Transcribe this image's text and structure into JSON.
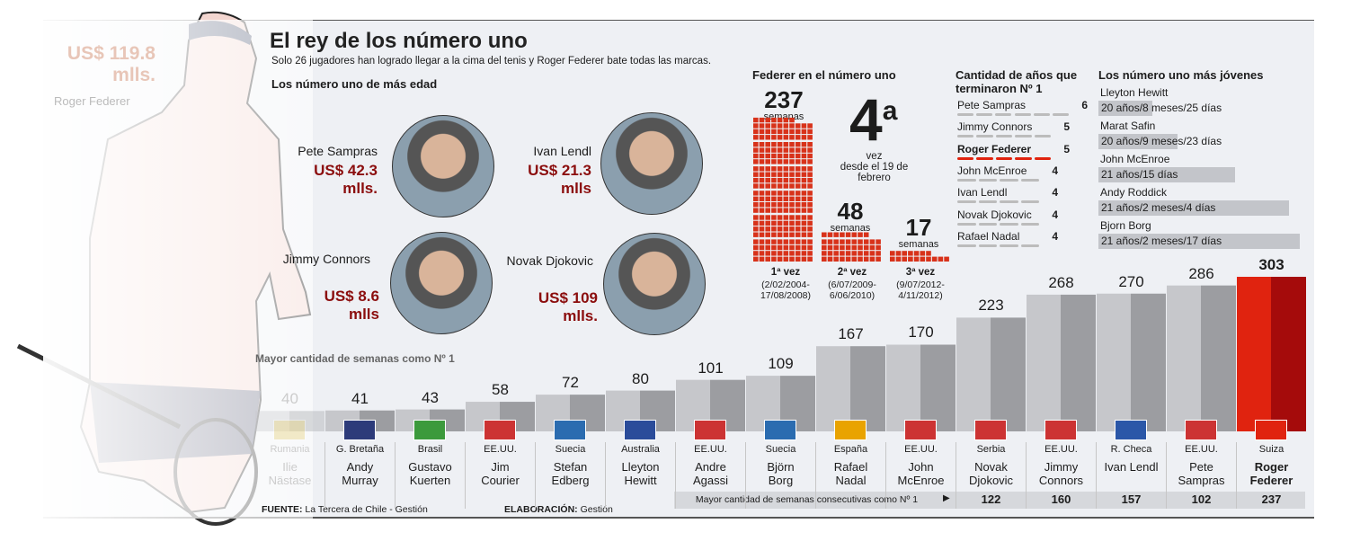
{
  "header": {
    "title": "El rey de los número uno",
    "subtitle": "Solo 26 jugadores han logrado llegar a la cima del tenis y Roger Federer bate todas las marcas.",
    "oldest_heading": "Los número uno de más edad"
  },
  "federer_money": {
    "amount": "US$ 119.8",
    "unit": "mlls.",
    "name": "Roger Federer"
  },
  "oldest": [
    {
      "name": "Pete Sampras",
      "money": "US$ 42.3",
      "unit": "mlls."
    },
    {
      "name": "Ivan Lendl",
      "money": "US$ 21.3",
      "unit": "mlls"
    },
    {
      "name": "Jimmy Connors",
      "money": "US$ 8.6",
      "unit": "mlls"
    },
    {
      "name": "Novak Djokovic",
      "money": "US$ 109",
      "unit": "mlls."
    }
  ],
  "federer_no1": {
    "heading": "Federer en el número uno",
    "ordinal": "4",
    "sup": "a",
    "vez": "vez",
    "since": "desde el 19 de febrero",
    "unit": "semanas",
    "stints": [
      {
        "weeks": 237,
        "label": "1ª vez",
        "dates": "(2/02/2004-17/08/2008)"
      },
      {
        "weeks": 48,
        "label": "2ª vez",
        "dates": "(6/07/2009-6/06/2010)"
      },
      {
        "weeks": 17,
        "label": "3ª vez",
        "dates": "(9/07/2012-4/11/2012)"
      }
    ]
  },
  "years_end": {
    "heading": "Cantidad de años que terminaron Nº 1",
    "rows": [
      {
        "name": "Pete Sampras",
        "value": 6
      },
      {
        "name": "Jimmy Connors",
        "value": 5
      },
      {
        "name": "Roger Federer",
        "value": 5,
        "highlight": true
      },
      {
        "name": "John McEnroe",
        "value": 4
      },
      {
        "name": "Ivan Lendl",
        "value": 4
      },
      {
        "name": "Novak Djokovic",
        "value": 4
      },
      {
        "name": "Rafael Nadal",
        "value": 4
      }
    ]
  },
  "youngest": {
    "heading": "Los número uno más jóvenes",
    "rows": [
      {
        "name": "Lleyton Hewitt",
        "age": "20 años/8 meses/25 días"
      },
      {
        "name": "Marat Safin",
        "age": "20 años/9 meses/23 días"
      },
      {
        "name": "John McEnroe",
        "age": "21 años/15 días"
      },
      {
        "name": "Andy Roddick",
        "age": "21 años/2 meses/4 días"
      },
      {
        "name": "Bjorn Borg",
        "age": "21 años/2 meses/17 días"
      }
    ]
  },
  "chart_data": {
    "type": "bar",
    "title": "Mayor cantidad de semanas como Nº 1",
    "categories": [
      "Ilie Nästase",
      "Andy Murray",
      "Gustavo Kuerten",
      "Jim Courier",
      "Stefan Edberg",
      "Lleyton Hewitt",
      "Andre Agassi",
      "Björn Borg",
      "Rafael Nadal",
      "John McEnroe",
      "Novak Djokovic",
      "Jimmy Connors",
      "Ivan Lendl",
      "Pete Sampras",
      "Roger Federer"
    ],
    "countries": [
      "Rumania",
      "G. Bretaña",
      "Brasil",
      "EE.UU.",
      "Suecia",
      "Australia",
      "EE.UU.",
      "Suecia",
      "España",
      "EE.UU.",
      "Serbia",
      "EE.UU.",
      "R. Checa",
      "EE.UU.",
      "Suiza"
    ],
    "values": [
      40,
      41,
      43,
      58,
      72,
      80,
      101,
      109,
      167,
      170,
      223,
      268,
      270,
      286,
      303
    ],
    "ylim": [
      0,
      303
    ],
    "highlight": "Roger Federer",
    "colors": {
      "bar": "#c6c7cb",
      "bar_dark": "#9c9da1",
      "highlight": "#e0230f",
      "highlight_dark": "#a50b0b"
    },
    "consecutive": {
      "label": "Mayor cantidad de semanas consecutivas como Nº 1",
      "names": [
        "Novak Djokovic",
        "Jimmy Connors",
        "Ivan Lendl",
        "Pete Sampras",
        "Roger Federer"
      ],
      "values": [
        122,
        160,
        157,
        102,
        237
      ]
    }
  },
  "footer": {
    "source_label": "FUENTE:",
    "source": "La Tercera de Chile - Gestión",
    "credit_label": "ELABORACIÓN:",
    "credit": "Gestión"
  }
}
